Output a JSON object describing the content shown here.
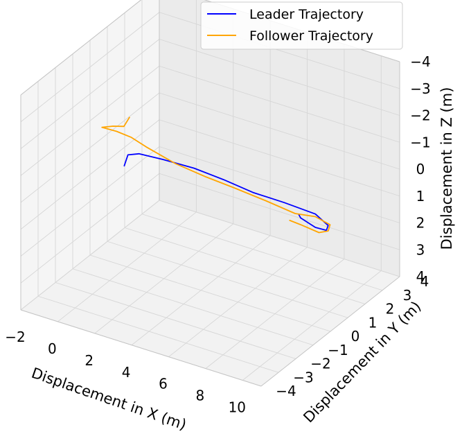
{
  "chart_data": {
    "type": "line3d",
    "title": "",
    "xlabel": "Displacement in X (m)",
    "ylabel": "Displacement in Y (m)",
    "zlabel": "Displacement in Z (m)",
    "xlim": [
      -2,
      11
    ],
    "ylim": [
      -4,
      4
    ],
    "zlim": [
      -4,
      4
    ],
    "z_inverted": true,
    "grid": true,
    "legend_position": "top-right",
    "x_ticks": [
      -2,
      0,
      2,
      4,
      6,
      8,
      10
    ],
    "y_ticks": [
      -4,
      -3,
      -2,
      -1,
      0,
      1,
      2,
      3,
      4
    ],
    "z_ticks": [
      -4,
      -3,
      -2,
      -1,
      0,
      1,
      2,
      3,
      4
    ],
    "x_tick_labels": [
      "−2",
      "0",
      "2",
      "4",
      "6",
      "8",
      "10"
    ],
    "y_tick_labels": [
      "−4",
      "−3",
      "−2",
      "−1",
      "0",
      "1",
      "2",
      "3",
      "4"
    ],
    "z_tick_labels": [
      "−4",
      "−3",
      "−2",
      "−1",
      "0",
      "1",
      "2",
      "3",
      "4"
    ],
    "series": [
      {
        "name": "Leader Trajectory",
        "color": "#0000ff",
        "points": [
          [
            0.6,
            -0.8,
            -0.3
          ],
          [
            0.8,
            -0.8,
            -0.75
          ],
          [
            1.3,
            -0.7,
            -0.85
          ],
          [
            2.5,
            -0.6,
            -0.85
          ],
          [
            4.0,
            -0.4,
            -0.75
          ],
          [
            5.5,
            -0.3,
            -0.6
          ],
          [
            7.0,
            -0.2,
            -0.4
          ],
          [
            8.5,
            0.0,
            -0.25
          ],
          [
            10.0,
            0.2,
            -0.05
          ],
          [
            10.6,
            0.3,
            0.3
          ],
          [
            10.5,
            0.3,
            0.5
          ],
          [
            10.0,
            0.2,
            0.45
          ],
          [
            9.3,
            0.1,
            0.2
          ],
          [
            9.2,
            0.1,
            0.1
          ]
        ]
      },
      {
        "name": "Follower Trajectory",
        "color": "#ffa500",
        "points": [
          [
            0.6,
            -0.5,
            -1.95
          ],
          [
            0.3,
            -0.5,
            -1.55
          ],
          [
            -0.2,
            -0.6,
            -1.5
          ],
          [
            -0.7,
            -0.7,
            -1.4
          ],
          [
            0.0,
            -0.6,
            -1.35
          ],
          [
            0.8,
            -0.6,
            -1.3
          ],
          [
            1.5,
            -0.5,
            -1.05
          ],
          [
            3.0,
            -0.4,
            -0.7
          ],
          [
            4.5,
            -0.3,
            -0.5
          ],
          [
            6.0,
            -0.2,
            -0.35
          ],
          [
            7.5,
            0.0,
            -0.1
          ],
          [
            9.0,
            0.1,
            0.1
          ],
          [
            10.0,
            0.2,
            0.05
          ],
          [
            10.7,
            0.3,
            0.25
          ],
          [
            10.6,
            0.3,
            0.5
          ],
          [
            10.2,
            0.2,
            0.6
          ],
          [
            9.3,
            0.1,
            0.45
          ],
          [
            8.8,
            0.0,
            0.35
          ]
        ]
      }
    ]
  }
}
